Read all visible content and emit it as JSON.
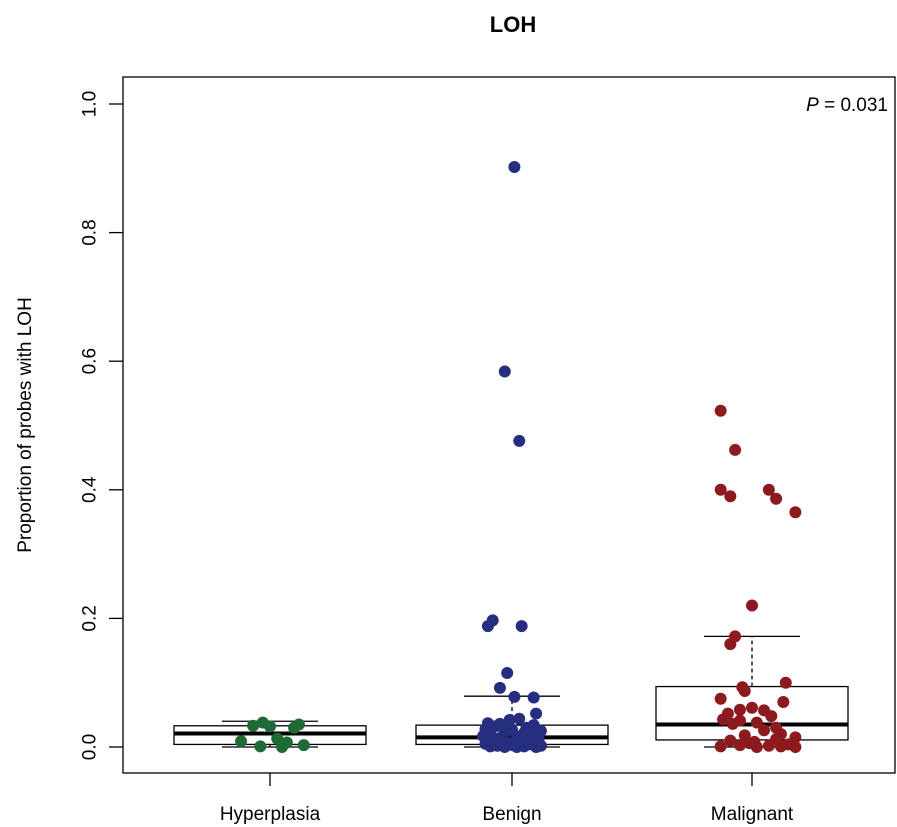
{
  "chart_data": {
    "type": "box",
    "title": "LOH",
    "ylabel": "Proportion of probes with LOH",
    "xlabel": "",
    "ylim": [
      0,
      1.0
    ],
    "yticks": [
      "0.0",
      "0.2",
      "0.4",
      "0.6",
      "0.8",
      "1.0"
    ],
    "categories": [
      "Hyperplasia",
      "Benign",
      "Malignant"
    ],
    "annotation": {
      "label": "P",
      "text": " = 0.031"
    },
    "colors": {
      "Hyperplasia": "#1e6b35",
      "Benign": "#262f7f",
      "Malignant": "#8c1a1e"
    },
    "boxes": [
      {
        "name": "Hyperplasia",
        "q1": 0.004,
        "median": 0.021,
        "q3": 0.033,
        "low": 0.0,
        "high": 0.04
      },
      {
        "name": "Benign",
        "q1": 0.004,
        "median": 0.015,
        "q3": 0.034,
        "low": 0.0,
        "high": 0.079
      },
      {
        "name": "Malignant",
        "q1": 0.011,
        "median": 0.035,
        "q3": 0.094,
        "low": 0.0,
        "high": 0.172
      }
    ],
    "points": {
      "Hyperplasia": [
        [
          -0.03,
          0.038
        ],
        [
          0.12,
          0.035
        ],
        [
          0.0,
          0.032
        ],
        [
          0.1,
          0.03
        ],
        [
          -0.07,
          0.033
        ],
        [
          0.03,
          0.013
        ],
        [
          -0.12,
          0.009
        ],
        [
          0.07,
          0.007
        ],
        [
          0.14,
          0.003
        ],
        [
          -0.04,
          0.001
        ],
        [
          0.05,
          0.0
        ]
      ],
      "Benign": [
        [
          0.01,
          0.902
        ],
        [
          -0.03,
          0.584
        ],
        [
          0.03,
          0.476
        ],
        [
          -0.08,
          0.197
        ],
        [
          -0.1,
          0.188
        ],
        [
          0.04,
          0.188
        ],
        [
          -0.02,
          0.115
        ],
        [
          -0.05,
          0.092
        ],
        [
          0.01,
          0.078
        ],
        [
          0.09,
          0.077
        ],
        [
          0.1,
          0.052
        ],
        [
          0.03,
          0.044
        ],
        [
          -0.01,
          0.042
        ],
        [
          -0.1,
          0.037
        ],
        [
          -0.05,
          0.036
        ],
        [
          0.09,
          0.034
        ],
        [
          -0.07,
          0.032
        ],
        [
          0.06,
          0.03
        ],
        [
          -0.11,
          0.028
        ],
        [
          0.0,
          0.027
        ],
        [
          0.12,
          0.025
        ],
        [
          -0.03,
          0.024
        ],
        [
          0.05,
          0.022
        ],
        [
          -0.09,
          0.02
        ],
        [
          0.08,
          0.019
        ],
        [
          -0.12,
          0.017
        ],
        [
          0.02,
          0.016
        ],
        [
          -0.05,
          0.014
        ],
        [
          0.11,
          0.012
        ],
        [
          -0.08,
          0.01
        ],
        [
          0.04,
          0.009
        ],
        [
          -0.02,
          0.007
        ],
        [
          0.09,
          0.006
        ],
        [
          -0.11,
          0.005
        ],
        [
          0.07,
          0.004
        ],
        [
          0.0,
          0.003
        ],
        [
          -0.06,
          0.002
        ],
        [
          0.12,
          0.002
        ],
        [
          -0.09,
          0.001
        ],
        [
          0.05,
          0.001
        ],
        [
          -0.03,
          0.0
        ],
        [
          0.1,
          0.0
        ],
        [
          0.02,
          0.0
        ]
      ],
      "Malignant": [
        [
          -0.13,
          0.523
        ],
        [
          -0.07,
          0.462
        ],
        [
          -0.13,
          0.4
        ],
        [
          0.07,
          0.4
        ],
        [
          -0.09,
          0.39
        ],
        [
          0.1,
          0.386
        ],
        [
          0.18,
          0.365
        ],
        [
          0.0,
          0.22
        ],
        [
          -0.07,
          0.172
        ],
        [
          -0.09,
          0.16
        ],
        [
          0.14,
          0.1
        ],
        [
          -0.04,
          0.093
        ],
        [
          -0.03,
          0.087
        ],
        [
          -0.13,
          0.075
        ],
        [
          0.13,
          0.07
        ],
        [
          0.0,
          0.061
        ],
        [
          -0.05,
          0.058
        ],
        [
          0.05,
          0.057
        ],
        [
          -0.1,
          0.052
        ],
        [
          0.08,
          0.048
        ],
        [
          -0.12,
          0.043
        ],
        [
          -0.05,
          0.041
        ],
        [
          0.02,
          0.038
        ],
        [
          -0.08,
          0.036
        ],
        [
          0.1,
          0.03
        ],
        [
          0.05,
          0.026
        ],
        [
          0.12,
          0.02
        ],
        [
          -0.03,
          0.018
        ],
        [
          0.18,
          0.015
        ],
        [
          0.1,
          0.012
        ],
        [
          -0.09,
          0.01
        ],
        [
          0.01,
          0.008
        ],
        [
          -0.01,
          0.006
        ],
        [
          0.15,
          0.004
        ],
        [
          -0.05,
          0.003
        ],
        [
          0.07,
          0.002
        ],
        [
          -0.13,
          0.001
        ],
        [
          0.12,
          0.001
        ],
        [
          0.02,
          0.0
        ],
        [
          0.18,
          0.0
        ]
      ]
    }
  }
}
